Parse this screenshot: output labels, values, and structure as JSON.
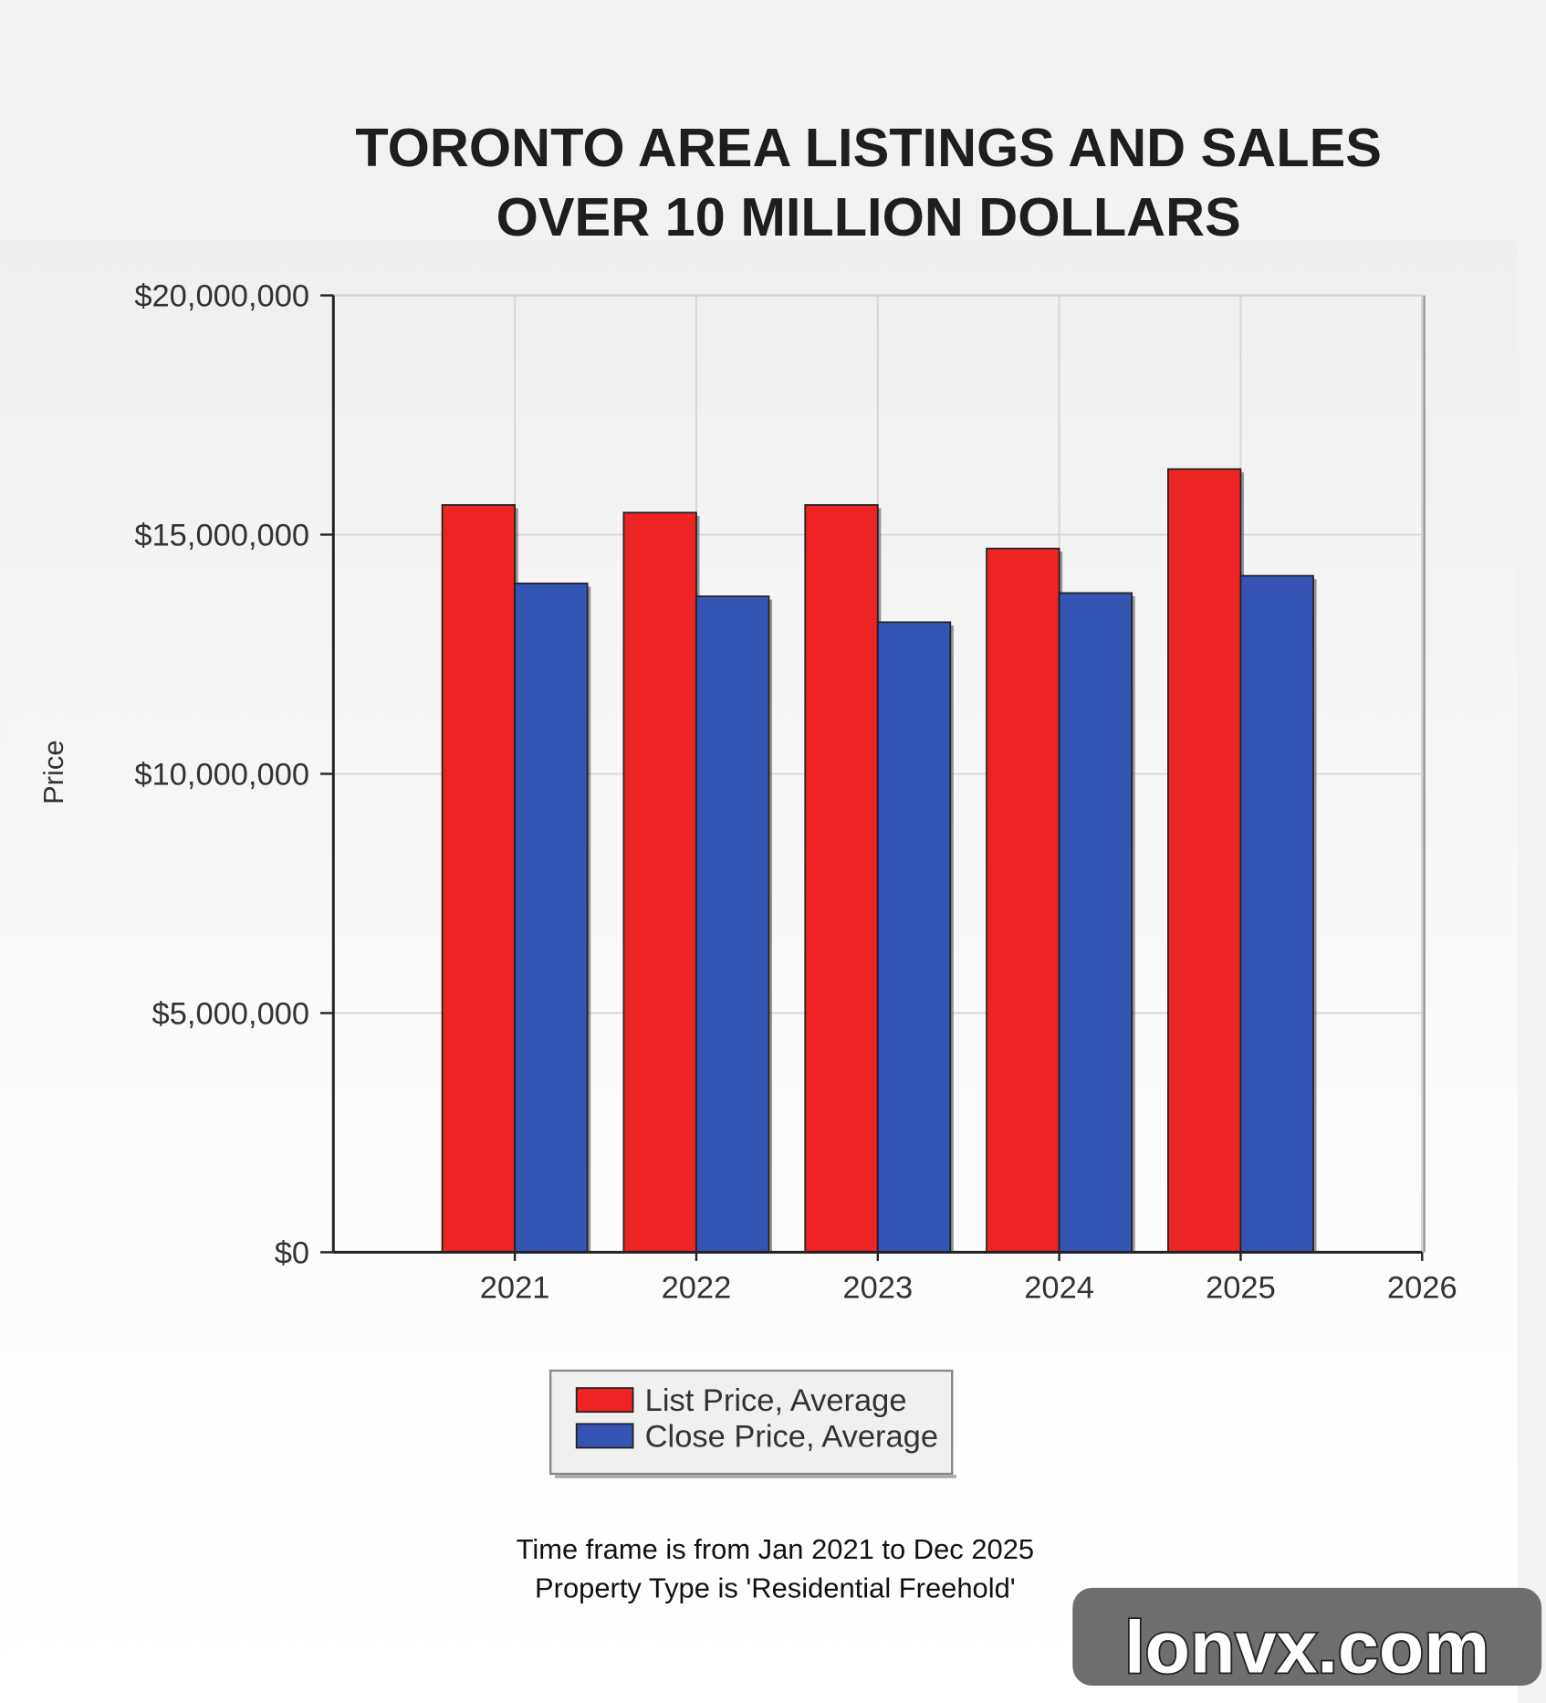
{
  "chart_data": {
    "type": "bar",
    "title": "TORONTO AREA LISTINGS AND SALES OVER 10 MILLION DOLLARS",
    "y_label": "Price",
    "x": [
      2021,
      2022,
      2023,
      2024,
      2025
    ],
    "xlim": [
      2020,
      2026
    ],
    "xticks": [
      2021,
      2022,
      2023,
      2024,
      2025,
      2026
    ],
    "ylim": [
      0,
      20000000
    ],
    "yticks": [
      {
        "value": 0,
        "label": "$0"
      },
      {
        "value": 5000000,
        "label": "$5,000,000"
      },
      {
        "value": 10000000,
        "label": "$10,000,000"
      },
      {
        "value": 15000000,
        "label": "$15,000,000"
      },
      {
        "value": 20000000,
        "label": "$20,000,000"
      }
    ],
    "grid": true,
    "series": [
      {
        "name": "List Price, Average",
        "color": "#ec2424",
        "values": [
          15620000,
          15460000,
          15620000,
          14710000,
          16370000
        ]
      },
      {
        "name": "Close Price, Average",
        "color": "#3555b5",
        "values": [
          13980000,
          13710000,
          13170000,
          13780000,
          14140000
        ]
      }
    ],
    "notes": [
      "Time frame is from Jan 2021 to Dec 2025",
      "Property Type is 'Residential Freehold'"
    ],
    "watermark": "lonvx.com"
  }
}
